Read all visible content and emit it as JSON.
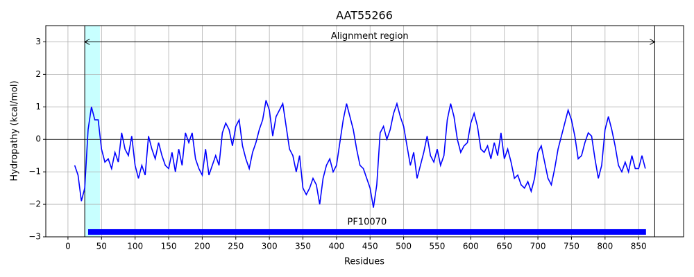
{
  "chart_data": {
    "type": "line",
    "title": "AAT55266",
    "xlabel": "Residues",
    "ylabel": "Hydropathy (kcal/mol)",
    "xlim": [
      -33,
      917
    ],
    "ylim": [
      -3,
      3.5
    ],
    "xticks": [
      0,
      50,
      100,
      150,
      200,
      250,
      300,
      350,
      400,
      450,
      500,
      550,
      600,
      650,
      700,
      750,
      800,
      850
    ],
    "yticks": [
      {
        "value": -3,
        "label": "−3"
      },
      {
        "value": -2,
        "label": "−2"
      },
      {
        "value": -1,
        "label": "−1"
      },
      0,
      1,
      2,
      3
    ],
    "grid": true,
    "x": [
      10,
      15,
      20,
      25,
      30,
      35,
      40,
      45,
      50,
      55,
      60,
      65,
      70,
      75,
      80,
      85,
      90,
      95,
      100,
      105,
      110,
      115,
      120,
      125,
      130,
      135,
      140,
      145,
      150,
      155,
      160,
      165,
      170,
      175,
      180,
      185,
      190,
      195,
      200,
      205,
      210,
      215,
      220,
      225,
      230,
      235,
      240,
      245,
      250,
      255,
      260,
      265,
      270,
      275,
      280,
      285,
      290,
      295,
      300,
      305,
      310,
      315,
      320,
      325,
      330,
      335,
      340,
      345,
      350,
      355,
      360,
      365,
      370,
      375,
      380,
      385,
      390,
      395,
      400,
      405,
      410,
      415,
      420,
      425,
      430,
      435,
      440,
      445,
      450,
      455,
      460,
      465,
      470,
      475,
      480,
      485,
      490,
      495,
      500,
      505,
      510,
      515,
      520,
      525,
      530,
      535,
      540,
      545,
      550,
      555,
      560,
      565,
      570,
      575,
      580,
      585,
      590,
      595,
      600,
      605,
      610,
      615,
      620,
      625,
      630,
      635,
      640,
      645,
      650,
      655,
      660,
      665,
      670,
      675,
      680,
      685,
      690,
      695,
      700,
      705,
      710,
      715,
      720,
      725,
      730,
      735,
      740,
      745,
      750,
      755,
      760,
      765,
      770,
      775,
      780,
      785,
      790,
      795,
      800,
      805,
      810,
      815,
      820,
      825,
      830,
      835,
      840,
      845,
      850,
      855,
      860
    ],
    "series": [
      {
        "color": "#0000ff",
        "values": [
          -0.8,
          -1.1,
          -1.9,
          -1.5,
          0.3,
          1.0,
          0.6,
          0.6,
          -0.3,
          -0.7,
          -0.6,
          -0.9,
          -0.4,
          -0.7,
          0.2,
          -0.3,
          -0.5,
          0.1,
          -0.8,
          -1.2,
          -0.8,
          -1.1,
          0.1,
          -0.3,
          -0.6,
          -0.1,
          -0.5,
          -0.8,
          -0.9,
          -0.4,
          -1.0,
          -0.3,
          -0.8,
          0.2,
          -0.1,
          0.2,
          -0.6,
          -0.9,
          -1.1,
          -0.3,
          -1.1,
          -0.8,
          -0.5,
          -0.8,
          0.2,
          0.5,
          0.3,
          -0.2,
          0.4,
          0.6,
          -0.2,
          -0.6,
          -0.9,
          -0.4,
          -0.1,
          0.3,
          0.6,
          1.2,
          0.9,
          0.1,
          0.7,
          0.9,
          1.1,
          0.4,
          -0.3,
          -0.5,
          -1.0,
          -0.5,
          -1.5,
          -1.7,
          -1.5,
          -1.2,
          -1.4,
          -2.0,
          -1.2,
          -0.8,
          -0.6,
          -1.0,
          -0.8,
          -0.1,
          0.6,
          1.1,
          0.7,
          0.3,
          -0.3,
          -0.8,
          -0.9,
          -1.2,
          -1.5,
          -2.1,
          -1.4,
          0.2,
          0.4,
          0.0,
          0.3,
          0.8,
          1.1,
          0.7,
          0.4,
          -0.2,
          -0.8,
          -0.4,
          -1.2,
          -0.8,
          -0.4,
          0.1,
          -0.5,
          -0.7,
          -0.3,
          -0.8,
          -0.5,
          0.6,
          1.1,
          0.7,
          0.0,
          -0.4,
          -0.2,
          -0.1,
          0.5,
          0.8,
          0.4,
          -0.3,
          -0.4,
          -0.2,
          -0.6,
          -0.1,
          -0.5,
          0.2,
          -0.6,
          -0.3,
          -0.7,
          -1.2,
          -1.1,
          -1.4,
          -1.5,
          -1.3,
          -1.6,
          -1.2,
          -0.4,
          -0.2,
          -0.7,
          -1.2,
          -1.4,
          -0.9,
          -0.3,
          0.1,
          0.5,
          0.9,
          0.6,
          0.1,
          -0.6,
          -0.5,
          -0.1,
          0.2,
          0.1,
          -0.6,
          -1.2,
          -0.8,
          0.3,
          0.7,
          0.3,
          -0.2,
          -0.8,
          -1.0,
          -0.7,
          -1.0,
          -0.5,
          -0.9,
          -0.9,
          -0.5,
          -0.9
        ]
      }
    ],
    "highlight": {
      "x": [
        25,
        47.6
      ],
      "color": "#c8ffff"
    },
    "vlines": [
      25,
      874
    ],
    "hline": 0,
    "region": {
      "label": "Alignment region",
      "x": [
        25,
        874
      ],
      "y": 3
    },
    "domain": {
      "label": "PF10070",
      "x": [
        30,
        861
      ],
      "y": -2.85,
      "color": "#0000ff"
    }
  }
}
